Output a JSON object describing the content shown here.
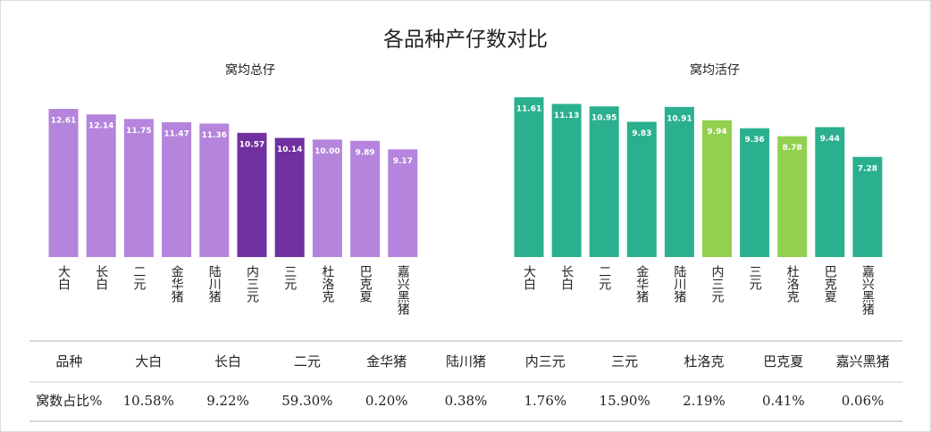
{
  "title": "各品种产仔数对比",
  "chart_data": [
    {
      "type": "bar",
      "title": "窝均总仔",
      "categories": [
        "大白",
        "长白",
        "二元",
        "金华猪",
        "陆川猪",
        "内三元",
        "三元",
        "杜洛克",
        "巴克夏",
        "嘉兴黑猪"
      ],
      "values": [
        12.61,
        12.14,
        11.75,
        11.47,
        11.36,
        10.57,
        10.14,
        10.0,
        9.89,
        9.17
      ],
      "value_labels": [
        "12.61",
        "12.14",
        "11.75",
        "11.47",
        "11.36",
        "10.57",
        "10.14",
        "10.00",
        "9.89",
        "9.17"
      ],
      "colors": [
        "#b584dc",
        "#b584dc",
        "#b584dc",
        "#b584dc",
        "#b584dc",
        "#7030a0",
        "#7030a0",
        "#b584dc",
        "#b584dc",
        "#b584dc"
      ]
    },
    {
      "type": "bar",
      "title": "窝均活仔",
      "categories": [
        "大白",
        "长白",
        "二元",
        "金华猪",
        "陆川猪",
        "内三元",
        "三元",
        "杜洛克",
        "巴克夏",
        "嘉兴黑猪"
      ],
      "values": [
        11.61,
        11.13,
        10.95,
        9.83,
        10.91,
        9.94,
        9.36,
        8.78,
        9.44,
        7.28
      ],
      "colors": [
        "#2bb08f",
        "#2bb08f",
        "#2bb08f",
        "#2bb08f",
        "#2bb08f",
        "#92d050",
        "#2bb08f",
        "#92d050",
        "#2bb08f",
        "#2bb08f"
      ]
    }
  ],
  "table": {
    "header": [
      "品种",
      "大白",
      "长白",
      "二元",
      "金华猪",
      "陆川猪",
      "内三元",
      "三元",
      "杜洛克",
      "巴克夏",
      "嘉兴黑猪"
    ],
    "rows": [
      [
        "窝数占比%",
        "10.58%",
        "9.22%",
        "59.30%",
        "0.20%",
        "0.38%",
        "1.76%",
        "15.90%",
        "2.19%",
        "0.41%",
        "0.06%"
      ]
    ]
  }
}
